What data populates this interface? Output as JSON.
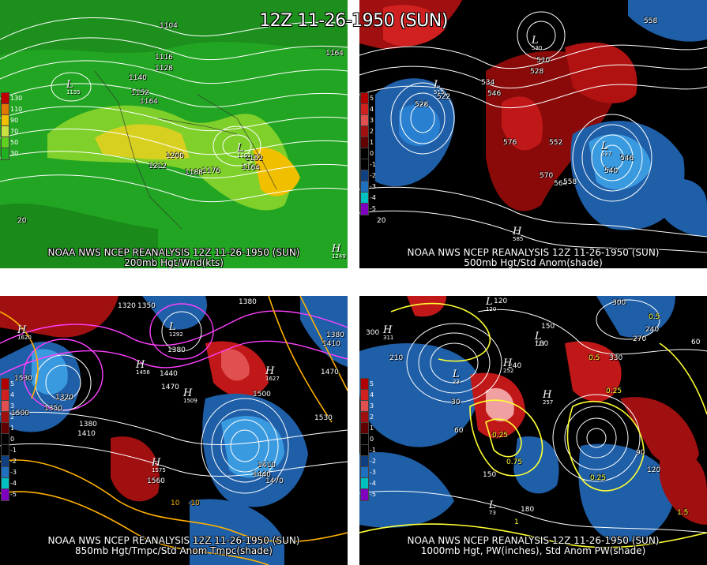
{
  "title": "12Z 11-26-1950 (SUN)",
  "panels": [
    {
      "id": "p200",
      "footer1": "NOAA NWS NCEP REANALYSIS 12Z 11-26-1950 (SUN)",
      "footer2": "200mb Hgt/Wnd(kts)",
      "scale": [
        {
          "label": "130",
          "color": "#c00000"
        },
        {
          "label": "110",
          "color": "#e07800"
        },
        {
          "label": "90",
          "color": "#f0c000"
        },
        {
          "label": "70",
          "color": "#c8e040"
        },
        {
          "label": "50",
          "color": "#60d020"
        },
        {
          "label": "30",
          "color": "#20b020"
        }
      ],
      "contours": [
        "1104",
        "1116",
        "1128",
        "1140",
        "1152",
        "1164",
        "1200",
        "1212",
        "1188",
        "1176",
        "1152",
        "1164",
        "1164",
        "1135",
        "1249",
        "1249",
        "20"
      ],
      "hl": [
        {
          "ch": "L",
          "v": "1135"
        },
        {
          "ch": "L",
          "v": "1152"
        },
        {
          "ch": "H",
          "v": "1249"
        }
      ]
    },
    {
      "id": "p500",
      "footer1": "NOAA NWS NCEP REANALYSIS 12Z 11-26-1950 (SUN)",
      "footer2": "500mb Hgt/Std Anom(shade)",
      "scale": [
        {
          "label": "5",
          "color": "#b00000"
        },
        {
          "label": "4",
          "color": "#d02020"
        },
        {
          "label": "3",
          "color": "#e05050"
        },
        {
          "label": "2",
          "color": "#a01010"
        },
        {
          "label": "1",
          "color": "#600000"
        },
        {
          "label": "0",
          "color": "#000000"
        },
        {
          "label": "-1",
          "color": "#000000"
        },
        {
          "label": "-2",
          "color": "#104080"
        },
        {
          "label": "-3",
          "color": "#2070c0"
        },
        {
          "label": "-4",
          "color": "#00c0c0"
        },
        {
          "label": "-5",
          "color": "#8000c0"
        }
      ],
      "contours": [
        "558",
        "534",
        "546",
        "528",
        "522",
        "576",
        "552",
        "570",
        "564",
        "558",
        "540",
        "546",
        "510",
        "528",
        "585",
        "20"
      ],
      "hl": [
        {
          "ch": "L",
          "v": "515"
        },
        {
          "ch": "L",
          "v": "530"
        },
        {
          "ch": "H",
          "v": "585"
        },
        {
          "ch": "L",
          "v": "527"
        }
      ]
    },
    {
      "id": "p850",
      "footer1": "NOAA NWS NCEP REANALYSIS 12Z 11-26-1950 (SUN)",
      "footer2": "850mb Hgt/Tmpc/Std Anom Tmpc(shade)",
      "scale": [
        {
          "label": "5",
          "color": "#b00000"
        },
        {
          "label": "4",
          "color": "#d02020"
        },
        {
          "label": "3",
          "color": "#e05050"
        },
        {
          "label": "2",
          "color": "#a01010"
        },
        {
          "label": "1",
          "color": "#600000"
        },
        {
          "label": "0",
          "color": "#000000"
        },
        {
          "label": "-1",
          "color": "#000000"
        },
        {
          "label": "-2",
          "color": "#104080"
        },
        {
          "label": "-3",
          "color": "#2070c0"
        },
        {
          "label": "-4",
          "color": "#00c0c0"
        },
        {
          "label": "-5",
          "color": "#8000c0"
        }
      ],
      "contours": [
        "1320",
        "1350",
        "1380",
        "1410",
        "1440",
        "1470",
        "1500",
        "1530",
        "1560",
        "1350",
        "1380",
        "1410",
        "1320",
        "1380",
        "1470",
        "1410",
        "1440",
        "1530",
        "1500",
        "1470",
        "1560",
        "10",
        "-10"
      ],
      "hl": [
        {
          "ch": "H",
          "v": "1620"
        },
        {
          "ch": "L",
          "v": "1292"
        },
        {
          "ch": "H",
          "v": "1456"
        },
        {
          "ch": "H",
          "v": "1627"
        },
        {
          "ch": "H",
          "v": "1509"
        },
        {
          "ch": "H",
          "v": "1575"
        }
      ]
    },
    {
      "id": "p1000",
      "footer1": "NOAA NWS NCEP REANALYSIS 12Z 11-26-1950 (SUN)",
      "footer2": "1000mb Hgt, PW(inches), Std Anom PW(shade)",
      "scale": [
        {
          "label": "5",
          "color": "#b00000"
        },
        {
          "label": "4",
          "color": "#d02020"
        },
        {
          "label": "3",
          "color": "#e05050"
        },
        {
          "label": "2",
          "color": "#a01010"
        },
        {
          "label": "1",
          "color": "#600000"
        },
        {
          "label": "0",
          "color": "#000000"
        },
        {
          "label": "-1",
          "color": "#000000"
        },
        {
          "label": "-2",
          "color": "#104080"
        },
        {
          "label": "-3",
          "color": "#2070c0"
        },
        {
          "label": "-4",
          "color": "#00c0c0"
        },
        {
          "label": "-5",
          "color": "#8000c0"
        }
      ],
      "contours": [
        "300",
        "210",
        "150",
        "120",
        "180",
        "240",
        "270",
        "330",
        "300",
        "60",
        "30",
        "90",
        "120",
        "150",
        "180",
        "240",
        "0.5",
        "0.25",
        "1",
        "1.5",
        "0.25",
        "0.75",
        "0.5",
        "0.25",
        "60"
      ],
      "hl": [
        {
          "ch": "L",
          "v": "120"
        },
        {
          "ch": "H",
          "v": "311"
        },
        {
          "ch": "L",
          "v": "127"
        },
        {
          "ch": "H",
          "v": "252"
        },
        {
          "ch": "L",
          "v": "23"
        },
        {
          "ch": "H",
          "v": "257"
        },
        {
          "ch": "L",
          "v": "73"
        }
      ]
    }
  ]
}
